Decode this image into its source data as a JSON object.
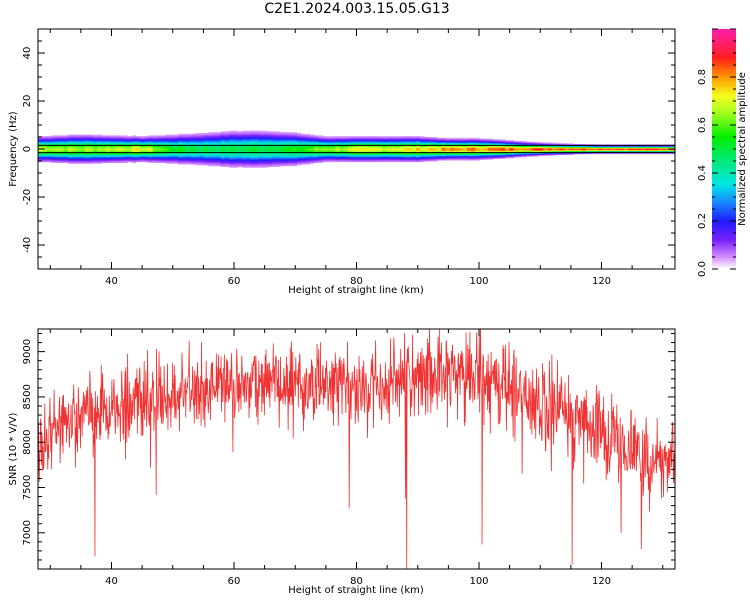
{
  "title": "C2E1.2024.003.15.05.G13",
  "chart_data": [
    {
      "type": "heatmap",
      "xlabel": "Height of straight line (km)",
      "ylabel": "Frequency (Hz)",
      "xlim": [
        28,
        132
      ],
      "ylim": [
        -50,
        50
      ],
      "x_ticks": [
        40,
        60,
        80,
        100,
        120
      ],
      "y_ticks": [
        -40,
        -20,
        0,
        20,
        40
      ],
      "grid": false,
      "colorbar": {
        "label": "Normalized spectral amplitude",
        "range": [
          0.0,
          1.0
        ],
        "ticks": [
          0.0,
          0.2,
          0.4,
          0.6,
          0.8
        ],
        "colormap": "gist_ncar-like (white→violet→blue→cyan→green→yellow→red→magenta)"
      },
      "ridge": {
        "height_km": [
          28,
          35,
          45,
          50,
          55,
          60,
          65,
          70,
          75,
          80,
          85,
          90,
          95,
          100,
          105,
          110,
          115,
          120,
          125,
          132
        ],
        "center_freq_hz": [
          0,
          0,
          0,
          0,
          0,
          0,
          0,
          0,
          0,
          0,
          0,
          0,
          0,
          0,
          0,
          0,
          0,
          0,
          0,
          0
        ],
        "half_width_hz": [
          3,
          3.5,
          3,
          3.5,
          4,
          4.5,
          4.5,
          4,
          3,
          3,
          3,
          3,
          2.5,
          2.5,
          2,
          1.5,
          1.2,
          1,
          1,
          1
        ],
        "peak_amplitude": [
          0.7,
          0.65,
          0.72,
          0.55,
          0.5,
          0.5,
          0.52,
          0.55,
          0.65,
          0.7,
          0.72,
          0.75,
          0.8,
          0.82,
          0.85,
          0.88,
          0.9,
          0.9,
          0.9,
          0.9
        ]
      },
      "reference_lines_hz": [
        -1.5,
        1.5
      ]
    },
    {
      "type": "line",
      "xlabel": "Height of straight line (km)",
      "ylabel": "SNR (10 * V/V)",
      "xlim": [
        28,
        132
      ],
      "ylim": [
        6600,
        9250
      ],
      "x_ticks": [
        40,
        60,
        80,
        100,
        120
      ],
      "y_ticks": [
        7000,
        7500,
        8000,
        8500,
        9000
      ],
      "grid": false,
      "series": [
        {
          "color": "#f03232",
          "envelope_x": [
            28,
            30,
            32,
            35,
            40,
            45,
            50,
            55,
            60,
            65,
            70,
            75,
            80,
            85,
            90,
            95,
            100,
            105,
            110,
            115,
            120,
            125,
            128,
            132
          ],
          "envelope_mean": [
            7900,
            8100,
            8250,
            8300,
            8400,
            8480,
            8550,
            8620,
            8650,
            8660,
            8640,
            8600,
            8620,
            8680,
            8720,
            8750,
            8740,
            8620,
            8450,
            8300,
            8150,
            7900,
            7800,
            7750
          ],
          "noise_amplitude": 320,
          "spikes": [
            {
              "x": 37.3,
              "y": 6740
            },
            {
              "x": 88.2,
              "y": 6600
            },
            {
              "x": 88.0,
              "y": 7380
            },
            {
              "x": 115.2,
              "y": 6650
            },
            {
              "x": 100.5,
              "y": 6870
            },
            {
              "x": 78.8,
              "y": 7270
            },
            {
              "x": 123.2,
              "y": 7000
            },
            {
              "x": 126.5,
              "y": 6820
            },
            {
              "x": 47.3,
              "y": 7420
            }
          ]
        }
      ]
    }
  ]
}
